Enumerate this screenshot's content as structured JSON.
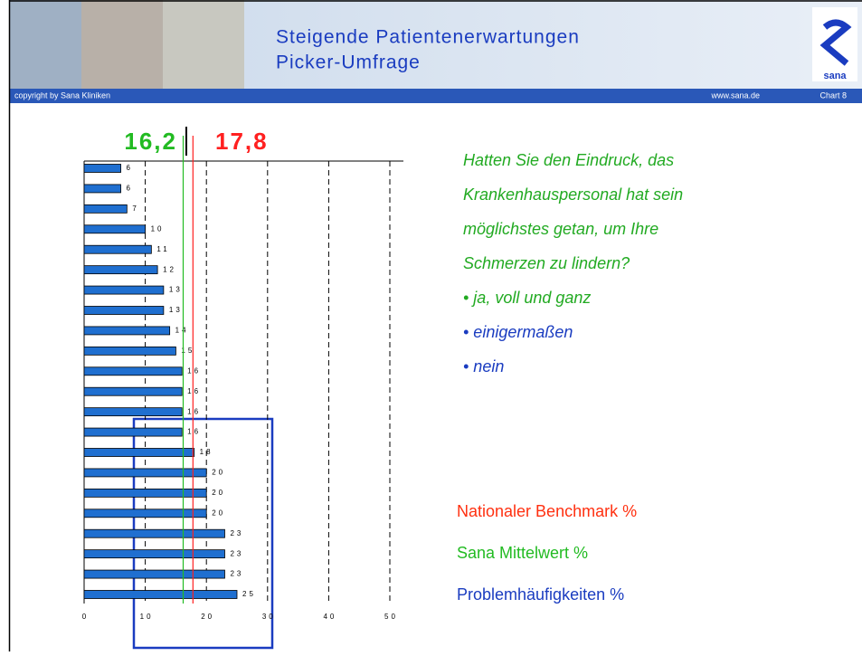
{
  "header": {
    "title_line1": "Steigende Patientenerwartungen",
    "title_line2": "Picker-Umfrage",
    "copyright": "copyright by Sana Kliniken",
    "website": "www.sana.de",
    "chart_number": "Chart 8",
    "logo_text": "sana"
  },
  "question": {
    "text_lines": [
      "Hatten Sie den Eindruck, das",
      "Krankenhauspersonal hat sein",
      "möglichstes getan, um Ihre",
      "Schmerzen zu lindern?"
    ],
    "options": [
      "• ja, voll und ganz",
      "• einigermaßen",
      "• nein"
    ]
  },
  "chart_data": {
    "type": "barh",
    "values": [
      6,
      6,
      7,
      10,
      11,
      12,
      13,
      13,
      14,
      15,
      16,
      16,
      16,
      16,
      18,
      20,
      20,
      20,
      23,
      23,
      23,
      25
    ],
    "color": "#1f6fd0",
    "xlim": [
      0,
      50
    ],
    "xticks": [
      0,
      10,
      20,
      30,
      40,
      50
    ],
    "grid": true,
    "reference_lines": [
      {
        "name": "Sana Mittelwert %",
        "value": 16.2,
        "label": "16,2",
        "color": "#22bb22"
      },
      {
        "name": "Nationaler Benchmark %",
        "value": 17.8,
        "label": "17,8",
        "color": "#ff2020"
      }
    ],
    "legend": [
      {
        "name": "Nationaler Benchmark %",
        "color": "#ff3010"
      },
      {
        "name": "Sana Mittelwert %",
        "color": "#22bb22"
      },
      {
        "name": "Problemhäufigkeiten %",
        "color": "#1a3cc0"
      }
    ]
  }
}
